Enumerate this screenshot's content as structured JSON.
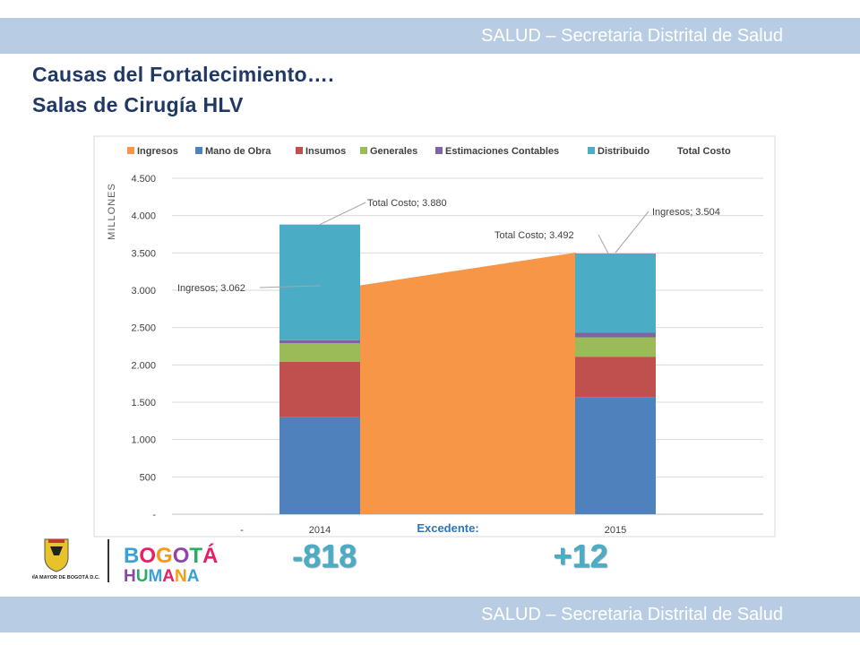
{
  "header": {
    "banner_top": "SALUD – Secretaria Distrital de Salud",
    "banner_bottom": "SALUD – Secretaria Distrital de Salud"
  },
  "title": {
    "line1": "Causas del Fortalecimiento….",
    "line2": "Salas de Cirugía HLV"
  },
  "logos": {
    "seal_text": "ALCALDÍA MAYOR DE BOGOTÁ D.C.",
    "brand_top": "BOGOTÁ",
    "brand_bottom": "HUMANA"
  },
  "chart_data": {
    "type": "bar",
    "categories": [
      "2014",
      "2015"
    ],
    "ylabel": "MILLONES",
    "ylim": [
      0,
      4500
    ],
    "yticks": [
      "-",
      "500",
      "1.000",
      "1.500",
      "2.000",
      "2.500",
      "3.000",
      "3.500",
      "4.000",
      "4.500"
    ],
    "grid": true,
    "legend": "top",
    "legend_entries": [
      "Ingresos",
      "Mano de Obra",
      "Insumos",
      "Generales",
      "Estimaciones Contables",
      "Distribuido",
      "Total Costo"
    ],
    "series": [
      {
        "name": "Mano de Obra",
        "color": "#4f81bd",
        "values": [
          1300,
          1570
        ]
      },
      {
        "name": "Insumos",
        "color": "#c0504d",
        "values": [
          740,
          540
        ]
      },
      {
        "name": "Generales",
        "color": "#9bbb59",
        "values": [
          250,
          260
        ]
      },
      {
        "name": "Estimaciones Contables",
        "color": "#8064a2",
        "values": [
          40,
          60
        ]
      },
      {
        "name": "Distribuido",
        "color": "#4bacc6",
        "values": [
          1550,
          1062
        ]
      }
    ],
    "ingresos": {
      "name": "Ingresos",
      "color": "#f79646",
      "values": [
        3062,
        3504
      ]
    },
    "total_costo": [
      3880,
      3492
    ],
    "data_labels": [
      {
        "text": "Total Costo; 3.880"
      },
      {
        "text": "Ingresos; 3.062"
      },
      {
        "text": "Total Costo; 3.492"
      },
      {
        "text": "Ingresos; 3.504"
      }
    ],
    "x_extra_tick": "-",
    "excedente_label": "Excedente:",
    "excedente_values": [
      "-818",
      "+12"
    ]
  }
}
